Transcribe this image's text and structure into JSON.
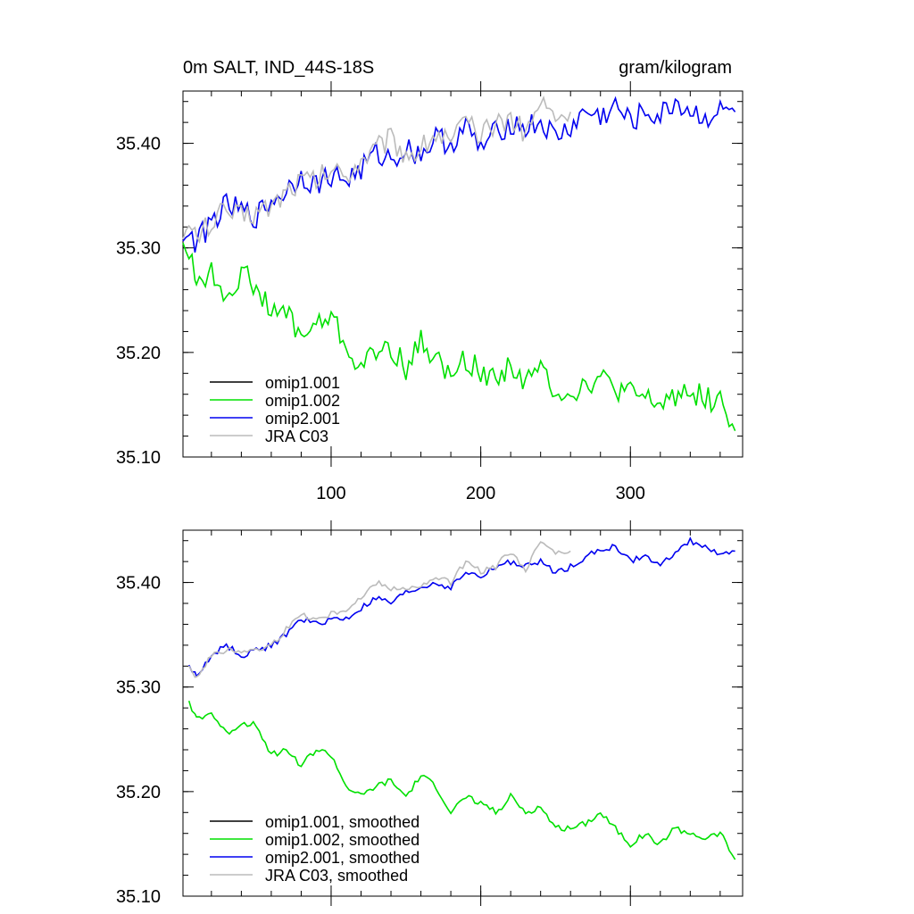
{
  "chart_data": [
    {
      "type": "line",
      "title": "0m SALT, IND_44S-18S",
      "units": "gram/kilogram",
      "xlim": [
        1,
        375
      ],
      "ylim": [
        35.1,
        35.45
      ],
      "xticks": [
        100,
        200,
        300
      ],
      "xtick_labels": [
        "100",
        "200",
        "300"
      ],
      "yticks": [
        35.1,
        35.2,
        35.3,
        35.4
      ],
      "ytick_labels": [
        "35.10",
        "35.20",
        "35.30",
        "35.40"
      ],
      "legend_position": "bottom-left",
      "legend": [
        "omip1.001",
        "omip1.002",
        "omip2.001",
        "JRA C03"
      ],
      "series": [
        {
          "name": "omip1.001",
          "color": "#000000",
          "x": [],
          "y": []
        },
        {
          "name": "omip1.002",
          "color": "#00e000",
          "x": [
            1,
            10,
            20,
            30,
            40,
            50,
            60,
            70,
            80,
            90,
            100,
            110,
            120,
            130,
            140,
            150,
            160,
            170,
            180,
            190,
            200,
            210,
            220,
            230,
            240,
            250,
            260,
            270,
            280,
            290,
            300,
            310,
            320,
            330,
            340,
            350,
            360,
            370
          ],
          "y": [
            35.31,
            35.27,
            35.275,
            35.255,
            35.275,
            35.265,
            35.235,
            35.24,
            35.215,
            35.225,
            35.235,
            35.205,
            35.185,
            35.2,
            35.205,
            35.185,
            35.21,
            35.195,
            35.175,
            35.195,
            35.18,
            35.175,
            35.19,
            35.17,
            35.185,
            35.165,
            35.16,
            35.17,
            35.175,
            35.165,
            35.16,
            35.155,
            35.15,
            35.16,
            35.165,
            35.155,
            35.155,
            35.125
          ]
        },
        {
          "name": "omip2.001",
          "color": "#0000f0",
          "x": [
            1,
            10,
            20,
            30,
            40,
            50,
            60,
            70,
            80,
            90,
            100,
            110,
            120,
            130,
            140,
            150,
            160,
            170,
            180,
            190,
            200,
            210,
            220,
            230,
            240,
            250,
            260,
            270,
            280,
            290,
            300,
            310,
            320,
            330,
            340,
            350,
            360,
            370
          ],
          "y": [
            35.315,
            35.305,
            35.325,
            35.34,
            35.335,
            35.33,
            35.345,
            35.355,
            35.37,
            35.36,
            35.37,
            35.365,
            35.375,
            35.39,
            35.385,
            35.395,
            35.39,
            35.405,
            35.4,
            35.415,
            35.395,
            35.41,
            35.42,
            35.415,
            35.42,
            35.405,
            35.415,
            35.43,
            35.425,
            35.435,
            35.42,
            35.43,
            35.425,
            35.44,
            35.43,
            35.425,
            35.43,
            35.43
          ]
        },
        {
          "name": "JRA C03",
          "color": "#bbbbbb",
          "x": [
            1,
            10,
            20,
            30,
            40,
            50,
            60,
            70,
            80,
            90,
            100,
            110,
            120,
            130,
            140,
            150,
            160,
            170,
            180,
            190,
            200,
            210,
            220,
            230,
            240,
            250,
            260
          ],
          "y": [
            35.32,
            35.31,
            35.325,
            35.335,
            35.33,
            35.335,
            35.34,
            35.355,
            35.365,
            35.365,
            35.375,
            35.37,
            35.385,
            35.395,
            35.405,
            35.39,
            35.395,
            35.41,
            35.4,
            35.42,
            35.405,
            35.42,
            35.425,
            35.41,
            35.44,
            35.425,
            35.43
          ]
        }
      ]
    },
    {
      "type": "line",
      "title": "",
      "xlim": [
        1,
        375
      ],
      "ylim": [
        35.1,
        35.45
      ],
      "xticks": [
        100,
        200,
        300
      ],
      "yticks": [
        35.1,
        35.2,
        35.3,
        35.4
      ],
      "ytick_labels": [
        "35.10",
        "35.20",
        "35.30",
        "35.40"
      ],
      "legend_position": "bottom-left",
      "legend": [
        "omip1.001, smoothed",
        "omip1.002, smoothed",
        "omip2.001, smoothed",
        "JRA C03, smoothed"
      ],
      "series": [
        {
          "name": "omip1.001, smoothed",
          "color": "#000000",
          "x": [],
          "y": []
        },
        {
          "name": "omip1.002, smoothed",
          "color": "#00e000",
          "x": [
            5,
            10,
            20,
            30,
            40,
            50,
            60,
            70,
            80,
            90,
            100,
            110,
            120,
            130,
            140,
            150,
            160,
            170,
            180,
            190,
            200,
            210,
            220,
            230,
            240,
            250,
            260,
            270,
            280,
            290,
            300,
            310,
            320,
            330,
            340,
            350,
            360,
            370
          ],
          "y": [
            35.285,
            35.27,
            35.275,
            35.255,
            35.265,
            35.265,
            35.235,
            35.24,
            35.225,
            35.24,
            35.235,
            35.205,
            35.195,
            35.205,
            35.21,
            35.195,
            35.215,
            35.205,
            35.18,
            35.195,
            35.19,
            35.18,
            35.195,
            35.18,
            35.185,
            35.165,
            35.165,
            35.17,
            35.18,
            35.165,
            35.15,
            35.16,
            35.15,
            35.165,
            35.16,
            35.155,
            35.16,
            35.135
          ]
        },
        {
          "name": "omip2.001, smoothed",
          "color": "#0000f0",
          "x": [
            5,
            10,
            20,
            30,
            40,
            50,
            60,
            70,
            80,
            90,
            100,
            110,
            120,
            130,
            140,
            150,
            160,
            170,
            180,
            190,
            200,
            210,
            220,
            230,
            240,
            250,
            260,
            270,
            280,
            290,
            300,
            310,
            320,
            330,
            340,
            350,
            360,
            370
          ],
          "y": [
            35.32,
            35.31,
            35.33,
            35.34,
            35.33,
            35.335,
            35.34,
            35.35,
            35.365,
            35.36,
            35.365,
            35.365,
            35.375,
            35.385,
            35.38,
            35.39,
            35.395,
            35.4,
            35.395,
            35.41,
            35.405,
            35.415,
            35.42,
            35.415,
            35.42,
            35.41,
            35.415,
            35.425,
            35.43,
            35.435,
            35.42,
            35.425,
            35.415,
            35.43,
            35.44,
            35.435,
            35.425,
            35.43
          ]
        },
        {
          "name": "JRA C03, smoothed",
          "color": "#bbbbbb",
          "x": [
            5,
            10,
            20,
            30,
            40,
            50,
            60,
            70,
            80,
            90,
            100,
            110,
            120,
            130,
            140,
            150,
            160,
            170,
            180,
            190,
            200,
            210,
            220,
            230,
            240,
            250,
            260
          ],
          "y": [
            35.32,
            35.31,
            35.33,
            35.335,
            35.335,
            35.335,
            35.34,
            35.355,
            35.37,
            35.365,
            35.37,
            35.375,
            35.385,
            35.4,
            35.395,
            35.395,
            35.395,
            35.405,
            35.4,
            35.42,
            35.41,
            35.415,
            35.43,
            35.41,
            35.44,
            35.43,
            35.43
          ]
        }
      ]
    }
  ]
}
